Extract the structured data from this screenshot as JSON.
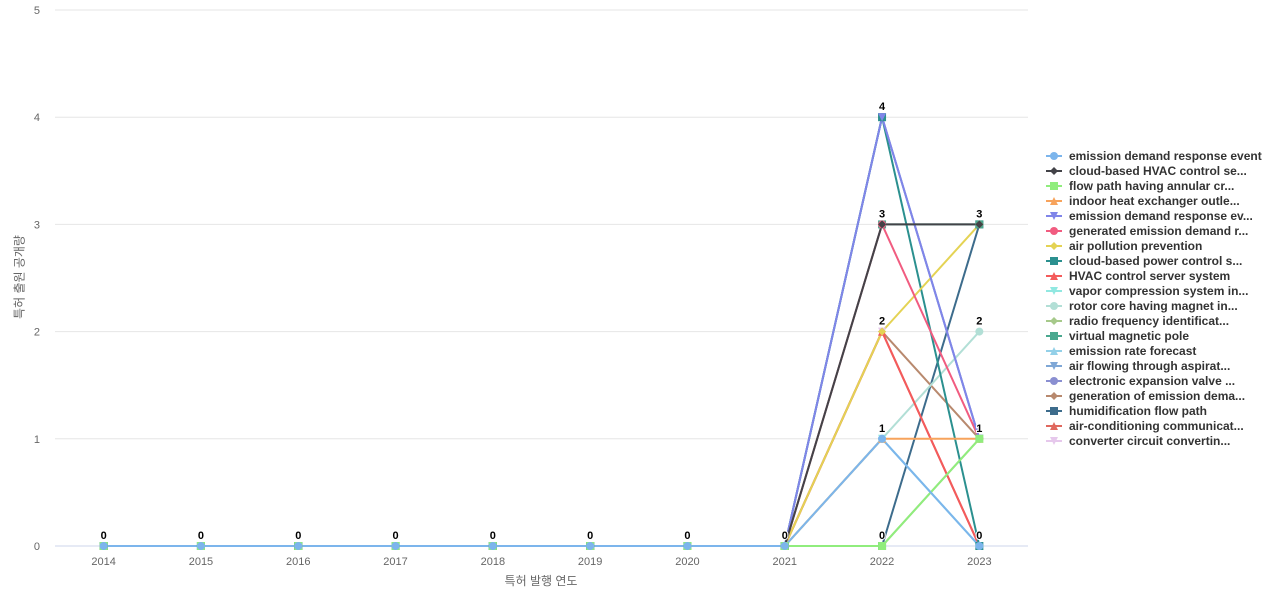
{
  "chart_data": {
    "type": "line",
    "xlabel": "특허 발행 연도",
    "ylabel": "특허 출원 공개량",
    "ylim": [
      0,
      5
    ],
    "yticks": [
      0,
      1,
      2,
      3,
      4,
      5
    ],
    "x": [
      "2014",
      "2015",
      "2016",
      "2017",
      "2018",
      "2019",
      "2020",
      "2021",
      "2022",
      "2023"
    ],
    "grid": true,
    "legend_position": "right",
    "data_labels": [
      {
        "x": "2014",
        "label": "0"
      },
      {
        "x": "2015",
        "label": "0"
      },
      {
        "x": "2016",
        "label": "0"
      },
      {
        "x": "2017",
        "label": "0"
      },
      {
        "x": "2018",
        "label": "0"
      },
      {
        "x": "2019",
        "label": "0"
      },
      {
        "x": "2020",
        "label": "0"
      },
      {
        "x": "2021",
        "label": "0"
      },
      {
        "x": "2022",
        "label": "4",
        "y": 4
      },
      {
        "x": "2022",
        "label": "3",
        "y": 3
      },
      {
        "x": "2022",
        "label": "2",
        "y": 2
      },
      {
        "x": "2022",
        "label": "1",
        "y": 1
      },
      {
        "x": "2022",
        "label": "0",
        "y": 0
      },
      {
        "x": "2023",
        "label": "3",
        "y": 3
      },
      {
        "x": "2023",
        "label": "2",
        "y": 2
      },
      {
        "x": "2023",
        "label": "1",
        "y": 1
      },
      {
        "x": "2023",
        "label": "0",
        "y": 0
      }
    ],
    "series": [
      {
        "name": "emission demand response event",
        "color": "#7cb5ec",
        "marker": "circle",
        "values": [
          0,
          0,
          0,
          0,
          0,
          0,
          0,
          0,
          1,
          0
        ]
      },
      {
        "name": "cloud-based HVAC control se...",
        "color": "#434348",
        "marker": "diamond",
        "values": [
          0,
          0,
          0,
          0,
          0,
          0,
          0,
          0,
          3,
          3
        ]
      },
      {
        "name": "flow path having annular cr...",
        "color": "#90ed7d",
        "marker": "square",
        "values": [
          0,
          0,
          0,
          0,
          0,
          0,
          0,
          0,
          0,
          1
        ]
      },
      {
        "name": "indoor heat exchanger outle...",
        "color": "#f7a35c",
        "marker": "triangle",
        "values": [
          0,
          0,
          0,
          0,
          0,
          0,
          0,
          0,
          1,
          1
        ]
      },
      {
        "name": "emission demand response ev...",
        "color": "#8085e9",
        "marker": "triangle-down",
        "values": [
          0,
          0,
          0,
          0,
          0,
          0,
          0,
          0,
          4,
          1
        ]
      },
      {
        "name": "generated emission demand r...",
        "color": "#f15c80",
        "marker": "circle",
        "values": [
          0,
          0,
          0,
          0,
          0,
          0,
          0,
          0,
          3,
          1
        ]
      },
      {
        "name": "air pollution prevention",
        "color": "#e4d354",
        "marker": "diamond",
        "values": [
          0,
          0,
          0,
          0,
          0,
          0,
          0,
          0,
          2,
          3
        ]
      },
      {
        "name": "cloud-based power control s...",
        "color": "#2b908f",
        "marker": "square",
        "values": [
          0,
          0,
          0,
          0,
          0,
          0,
          0,
          0,
          4,
          0
        ]
      },
      {
        "name": "HVAC control server system",
        "color": "#f45b5b",
        "marker": "triangle",
        "values": [
          0,
          0,
          0,
          0,
          0,
          0,
          0,
          0,
          2,
          0
        ]
      },
      {
        "name": "vapor compression system in...",
        "color": "#91e8e1",
        "marker": "triangle-down",
        "values": [
          0,
          0,
          0,
          0,
          0,
          0,
          0,
          0,
          1,
          0
        ]
      },
      {
        "name": "rotor core having magnet in...",
        "color": "#b2dfd6",
        "marker": "circle",
        "values": [
          0,
          0,
          0,
          0,
          0,
          0,
          0,
          0,
          1,
          2
        ]
      },
      {
        "name": "radio frequency identificat...",
        "color": "#a6c98a",
        "marker": "diamond",
        "values": [
          0,
          0,
          0,
          0,
          0,
          0,
          0,
          0,
          0,
          1
        ]
      },
      {
        "name": "virtual magnetic pole",
        "color": "#4aa88f",
        "marker": "square",
        "values": [
          0,
          0,
          0,
          0,
          0,
          0,
          0,
          0,
          3,
          3
        ]
      },
      {
        "name": "emission rate forecast",
        "color": "#93d0e8",
        "marker": "triangle",
        "values": [
          0,
          0,
          0,
          0,
          0,
          0,
          0,
          0,
          1,
          0
        ]
      },
      {
        "name": "air flowing through aspirat...",
        "color": "#7fa7d6",
        "marker": "triangle-down",
        "values": [
          0,
          0,
          0,
          0,
          0,
          0,
          0,
          0,
          4,
          1
        ]
      },
      {
        "name": "electronic expansion valve ...",
        "color": "#8a8fd1",
        "marker": "circle",
        "values": [
          0,
          0,
          0,
          0,
          0,
          0,
          0,
          0,
          4,
          1
        ]
      },
      {
        "name": "generation of emission dema...",
        "color": "#b8896e",
        "marker": "diamond",
        "values": [
          0,
          0,
          0,
          0,
          0,
          0,
          0,
          0,
          2,
          1
        ]
      },
      {
        "name": "humidification flow path",
        "color": "#3d6c8c",
        "marker": "square",
        "values": [
          0,
          0,
          0,
          0,
          0,
          0,
          0,
          0,
          0,
          3
        ]
      },
      {
        "name": "air-conditioning communicat...",
        "color": "#e0685e",
        "marker": "triangle",
        "values": [
          0,
          0,
          0,
          0,
          0,
          0,
          0,
          0,
          2,
          0
        ]
      },
      {
        "name": "converter circuit convertin...",
        "color": "#e6c8ec",
        "marker": "triangle-down",
        "values": [
          0,
          0,
          0,
          0,
          0,
          0,
          0,
          0,
          2,
          0
        ]
      }
    ]
  }
}
